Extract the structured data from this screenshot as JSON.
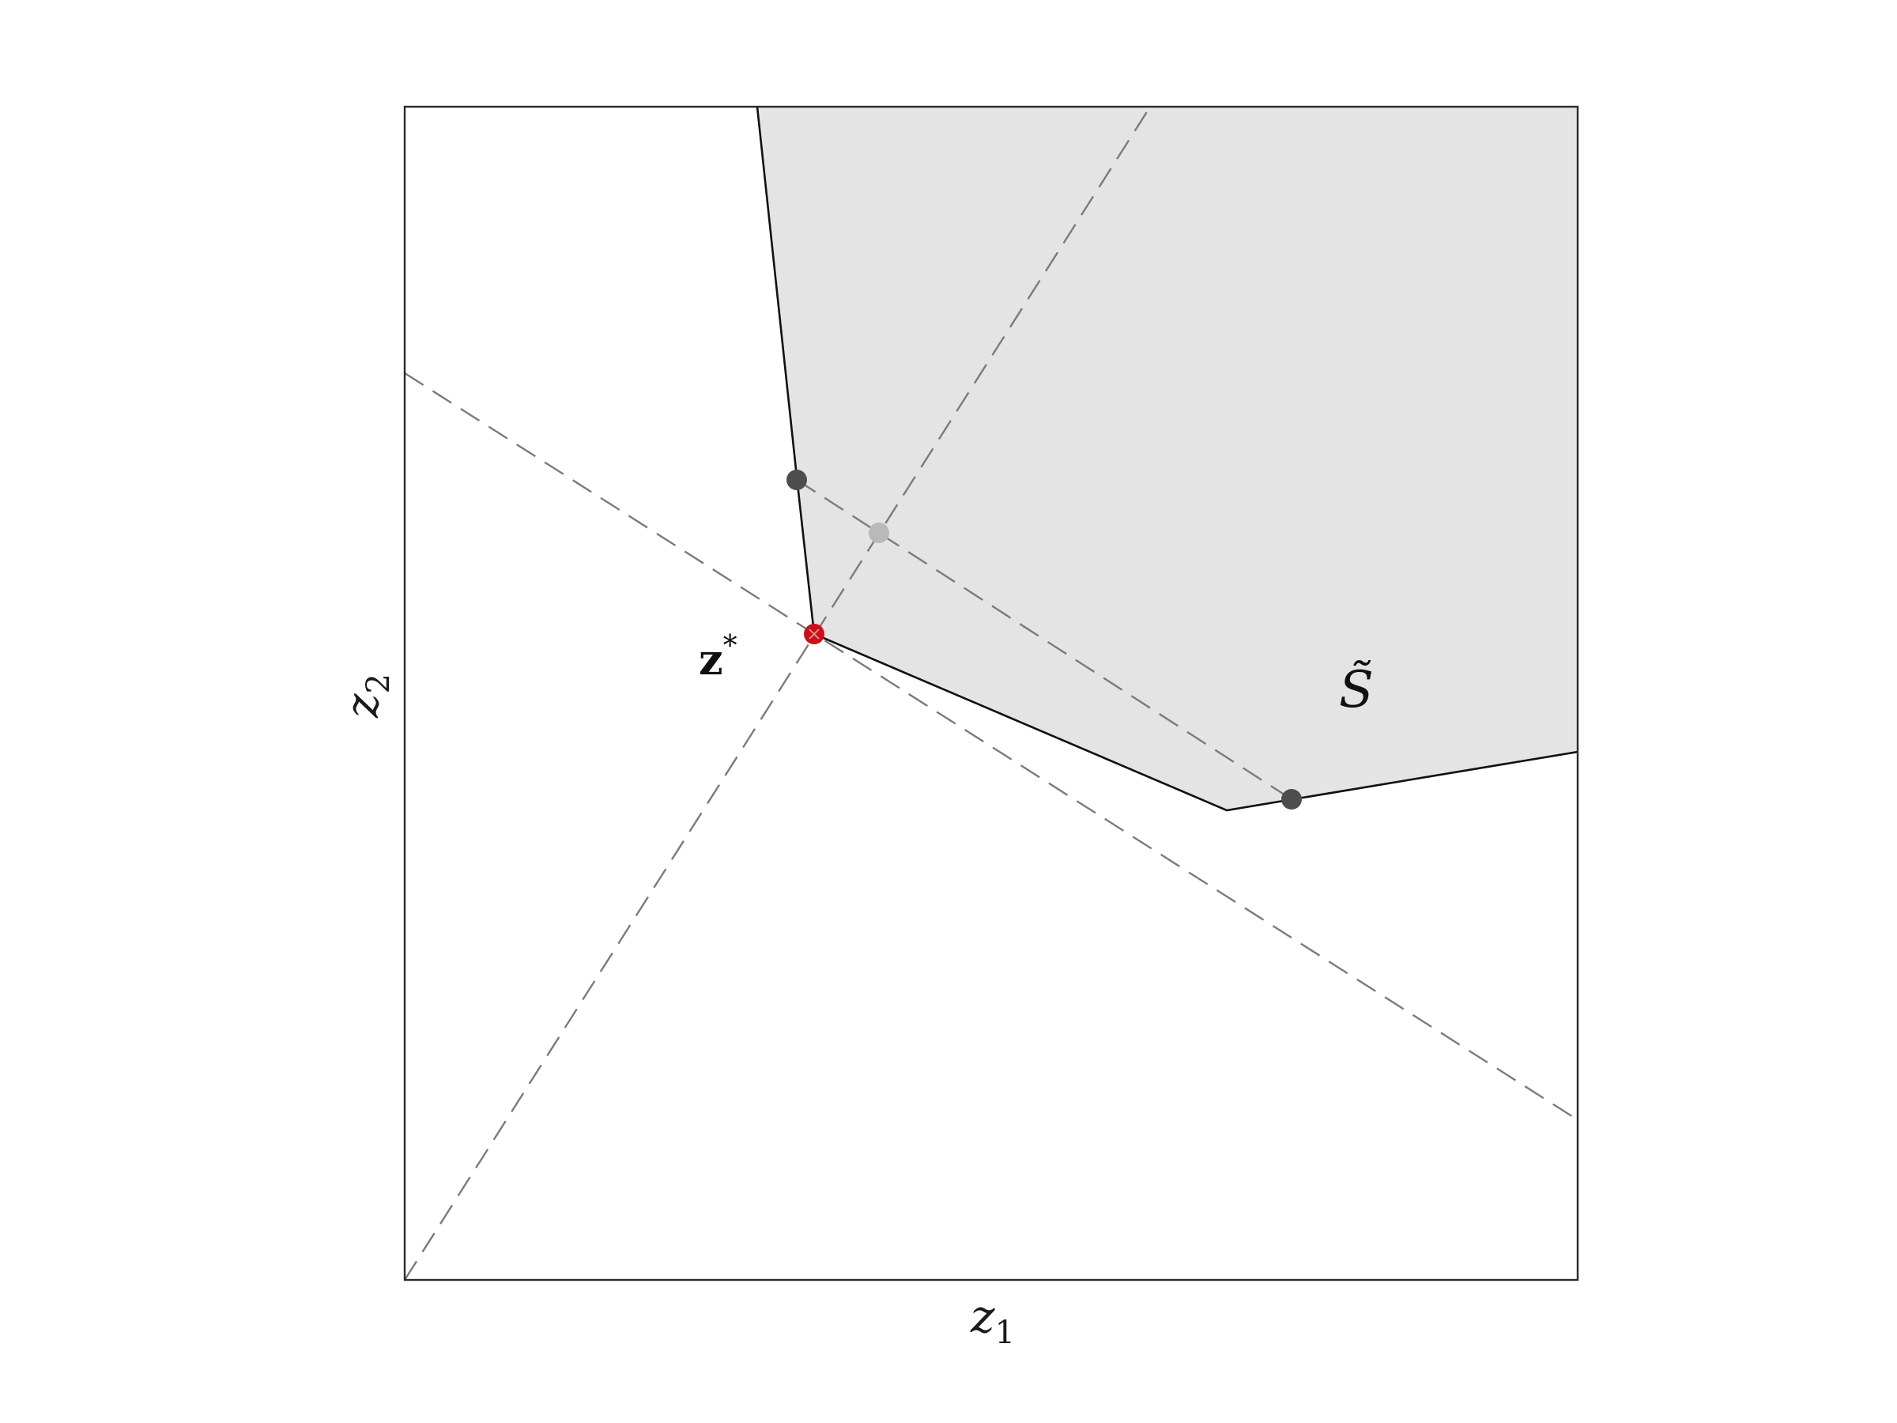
{
  "axes": {
    "x_label": {
      "base": "z",
      "sub": "1"
    },
    "y_label": {
      "base": "z",
      "sub": "2"
    }
  },
  "ideal_point": {
    "label": "z",
    "label_sup": "*",
    "color": "#cc101a"
  },
  "region": {
    "label": "S̃",
    "fill_color": "#e4e4e4"
  },
  "guide_color": "#7b7b7b",
  "projection_point_color": "#4d4d4d",
  "midpoint_color": "#b9b9b9"
}
